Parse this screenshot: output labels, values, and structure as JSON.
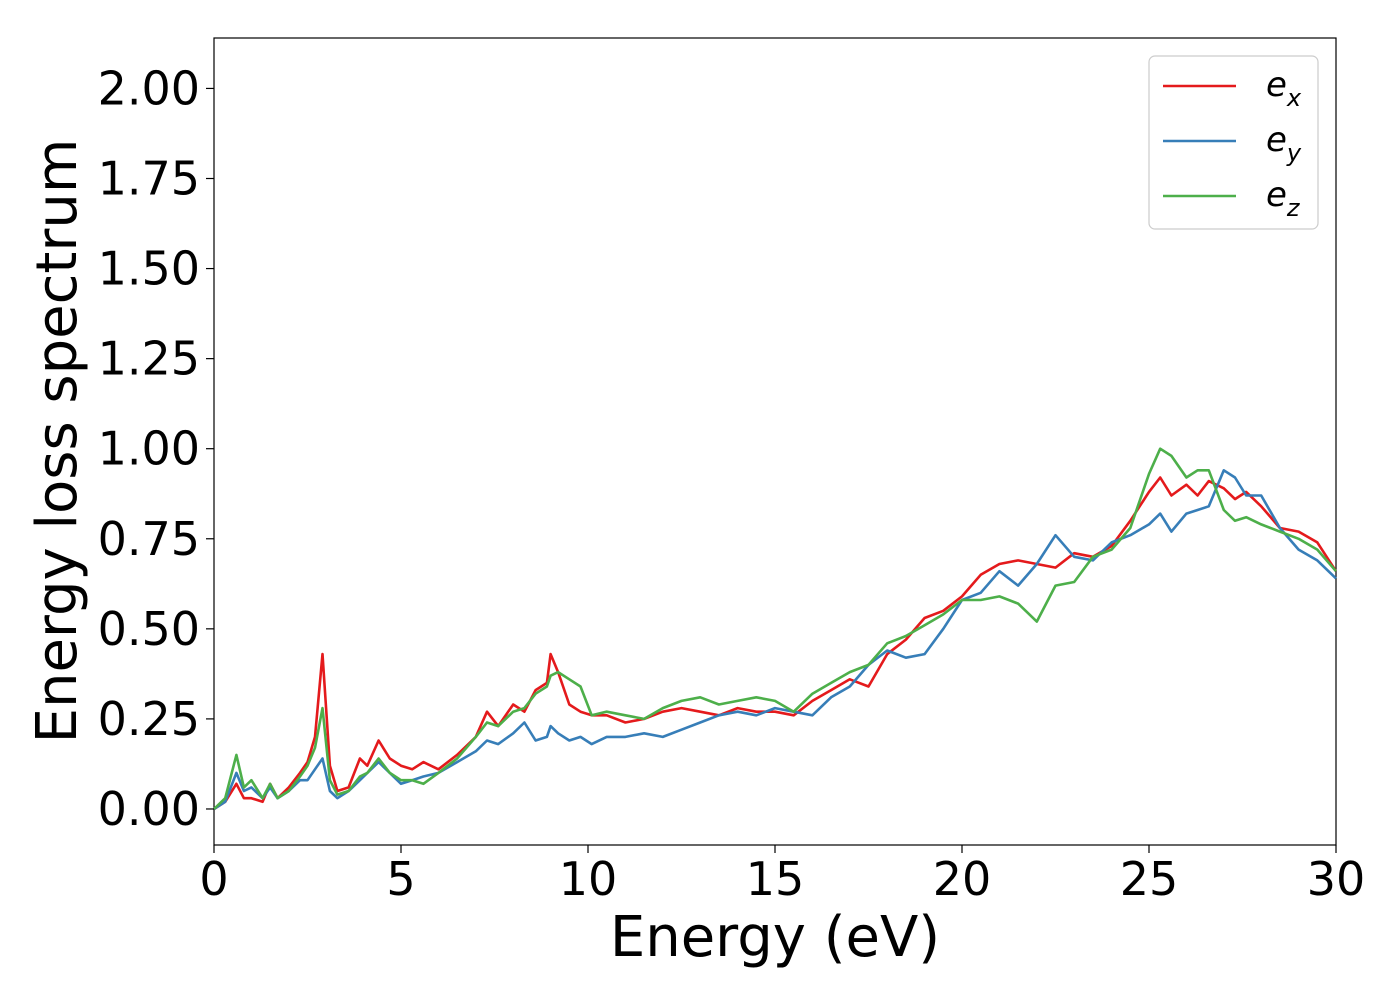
{
  "chart_data": {
    "type": "line",
    "title": "",
    "xlabel": "Energy (eV)",
    "ylabel": "Energy loss spectrum",
    "xlim": [
      0,
      30
    ],
    "ylim": [
      -0.1,
      2.14
    ],
    "xticks": [
      "0",
      "5",
      "10",
      "15",
      "20",
      "25",
      "30"
    ],
    "yticks": [
      "0.00",
      "0.25",
      "0.50",
      "0.75",
      "1.00",
      "1.25",
      "1.50",
      "1.75",
      "2.00"
    ],
    "grid": false,
    "legend_position": "top-right",
    "series": [
      {
        "name": "e_x",
        "legend_main": "e",
        "legend_sub": "x",
        "color": "#e41a1c",
        "x": [
          0,
          0.3,
          0.6,
          0.8,
          1.0,
          1.3,
          1.5,
          1.7,
          2.0,
          2.3,
          2.5,
          2.7,
          2.9,
          3.1,
          3.3,
          3.6,
          3.9,
          4.1,
          4.4,
          4.7,
          5.0,
          5.3,
          5.6,
          6.0,
          6.5,
          7.0,
          7.3,
          7.6,
          8.0,
          8.3,
          8.6,
          8.9,
          9.0,
          9.2,
          9.5,
          9.8,
          10.1,
          10.5,
          11.0,
          11.5,
          12.0,
          12.5,
          13.0,
          13.5,
          14.0,
          14.5,
          15.0,
          15.5,
          16.0,
          16.5,
          17.0,
          17.5,
          18.0,
          18.5,
          19.0,
          19.5,
          20.0,
          20.5,
          21.0,
          21.5,
          22.0,
          22.5,
          23.0,
          23.5,
          24.0,
          24.5,
          25.0,
          25.3,
          25.6,
          26.0,
          26.3,
          26.6,
          27.0,
          27.3,
          27.6,
          28.0,
          28.5,
          29.0,
          29.5,
          30.0
        ],
        "y": [
          0.0,
          0.02,
          0.07,
          0.03,
          0.03,
          0.02,
          0.07,
          0.03,
          0.06,
          0.1,
          0.13,
          0.2,
          0.43,
          0.12,
          0.05,
          0.06,
          0.14,
          0.12,
          0.19,
          0.14,
          0.12,
          0.11,
          0.13,
          0.11,
          0.15,
          0.2,
          0.27,
          0.23,
          0.29,
          0.27,
          0.33,
          0.35,
          0.43,
          0.38,
          0.29,
          0.27,
          0.26,
          0.26,
          0.24,
          0.25,
          0.27,
          0.28,
          0.27,
          0.26,
          0.28,
          0.27,
          0.27,
          0.26,
          0.3,
          0.33,
          0.36,
          0.34,
          0.43,
          0.47,
          0.53,
          0.55,
          0.59,
          0.65,
          0.68,
          0.69,
          0.68,
          0.67,
          0.71,
          0.7,
          0.73,
          0.8,
          0.88,
          0.92,
          0.87,
          0.9,
          0.87,
          0.91,
          0.89,
          0.86,
          0.88,
          0.84,
          0.78,
          0.77,
          0.74,
          0.66
        ]
      },
      {
        "name": "e_y",
        "legend_main": "e",
        "legend_sub": "y",
        "color": "#377eb8",
        "x": [
          0,
          0.3,
          0.6,
          0.8,
          1.0,
          1.3,
          1.5,
          1.7,
          2.0,
          2.3,
          2.5,
          2.7,
          2.9,
          3.1,
          3.3,
          3.6,
          3.9,
          4.1,
          4.4,
          4.7,
          5.0,
          5.3,
          5.6,
          6.0,
          6.5,
          7.0,
          7.3,
          7.6,
          8.0,
          8.3,
          8.6,
          8.9,
          9.0,
          9.2,
          9.5,
          9.8,
          10.1,
          10.5,
          11.0,
          11.5,
          12.0,
          12.5,
          13.0,
          13.5,
          14.0,
          14.5,
          15.0,
          15.5,
          16.0,
          16.5,
          17.0,
          17.5,
          18.0,
          18.5,
          19.0,
          19.5,
          20.0,
          20.5,
          21.0,
          21.5,
          22.0,
          22.5,
          23.0,
          23.5,
          24.0,
          24.5,
          25.0,
          25.3,
          25.6,
          26.0,
          26.3,
          26.6,
          27.0,
          27.3,
          27.6,
          28.0,
          28.5,
          29.0,
          29.5,
          30.0
        ],
        "y": [
          0.0,
          0.02,
          0.1,
          0.05,
          0.06,
          0.03,
          0.06,
          0.03,
          0.05,
          0.08,
          0.08,
          0.11,
          0.14,
          0.05,
          0.03,
          0.05,
          0.08,
          0.1,
          0.13,
          0.1,
          0.07,
          0.08,
          0.09,
          0.1,
          0.13,
          0.16,
          0.19,
          0.18,
          0.21,
          0.24,
          0.19,
          0.2,
          0.23,
          0.21,
          0.19,
          0.2,
          0.18,
          0.2,
          0.2,
          0.21,
          0.2,
          0.22,
          0.24,
          0.26,
          0.27,
          0.26,
          0.28,
          0.27,
          0.26,
          0.31,
          0.34,
          0.4,
          0.44,
          0.42,
          0.43,
          0.5,
          0.58,
          0.6,
          0.66,
          0.62,
          0.68,
          0.76,
          0.7,
          0.69,
          0.74,
          0.76,
          0.79,
          0.82,
          0.77,
          0.82,
          0.83,
          0.84,
          0.94,
          0.92,
          0.87,
          0.87,
          0.78,
          0.72,
          0.69,
          0.64
        ]
      },
      {
        "name": "e_z",
        "legend_main": "e",
        "legend_sub": "z",
        "color": "#4daf4a",
        "x": [
          0,
          0.3,
          0.6,
          0.8,
          1.0,
          1.3,
          1.5,
          1.7,
          2.0,
          2.3,
          2.5,
          2.7,
          2.9,
          3.1,
          3.3,
          3.6,
          3.9,
          4.1,
          4.4,
          4.7,
          5.0,
          5.3,
          5.6,
          6.0,
          6.5,
          7.0,
          7.3,
          7.6,
          8.0,
          8.3,
          8.6,
          8.9,
          9.0,
          9.2,
          9.5,
          9.8,
          10.1,
          10.5,
          11.0,
          11.5,
          12.0,
          12.5,
          13.0,
          13.5,
          14.0,
          14.5,
          15.0,
          15.5,
          16.0,
          16.5,
          17.0,
          17.5,
          18.0,
          18.5,
          19.0,
          19.5,
          20.0,
          20.5,
          21.0,
          21.5,
          22.0,
          22.5,
          23.0,
          23.5,
          24.0,
          24.5,
          25.0,
          25.3,
          25.6,
          26.0,
          26.3,
          26.6,
          27.0,
          27.3,
          27.6,
          28.0,
          28.5,
          29.0,
          29.5,
          30.0
        ],
        "y": [
          0.0,
          0.03,
          0.15,
          0.06,
          0.08,
          0.03,
          0.07,
          0.03,
          0.05,
          0.09,
          0.12,
          0.17,
          0.28,
          0.08,
          0.04,
          0.05,
          0.09,
          0.1,
          0.14,
          0.1,
          0.08,
          0.08,
          0.07,
          0.1,
          0.14,
          0.2,
          0.24,
          0.23,
          0.27,
          0.28,
          0.32,
          0.34,
          0.37,
          0.38,
          0.36,
          0.34,
          0.26,
          0.27,
          0.26,
          0.25,
          0.28,
          0.3,
          0.31,
          0.29,
          0.3,
          0.31,
          0.3,
          0.27,
          0.32,
          0.35,
          0.38,
          0.4,
          0.46,
          0.48,
          0.51,
          0.54,
          0.58,
          0.58,
          0.59,
          0.57,
          0.52,
          0.62,
          0.63,
          0.7,
          0.72,
          0.78,
          0.93,
          1.0,
          0.98,
          0.92,
          0.94,
          0.94,
          0.83,
          0.8,
          0.81,
          0.79,
          0.77,
          0.75,
          0.72,
          0.66
        ]
      }
    ]
  }
}
